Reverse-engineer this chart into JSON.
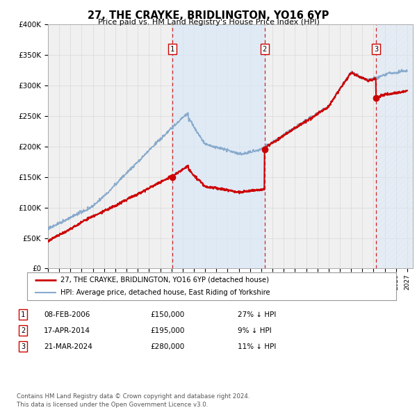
{
  "title": "27, THE CRAYKE, BRIDLINGTON, YO16 6YP",
  "subtitle": "Price paid vs. HM Land Registry's House Price Index (HPI)",
  "ylim": [
    0,
    400000
  ],
  "yticks": [
    0,
    50000,
    100000,
    150000,
    200000,
    250000,
    300000,
    350000,
    400000
  ],
  "xlim_start": 1995.0,
  "xlim_end": 2027.5,
  "sale_dates": [
    2006.1,
    2014.29,
    2024.22
  ],
  "sale_prices": [
    150000,
    195000,
    280000
  ],
  "sale_labels": [
    "1",
    "2",
    "3"
  ],
  "sale_info": [
    {
      "label": "1",
      "date": "08-FEB-2006",
      "price": "£150,000",
      "pct": "27% ↓ HPI"
    },
    {
      "label": "2",
      "date": "17-APR-2014",
      "price": "£195,000",
      "pct": "9% ↓ HPI"
    },
    {
      "label": "3",
      "date": "21-MAR-2024",
      "price": "£280,000",
      "pct": "11% ↓ HPI"
    }
  ],
  "legend_entries": [
    {
      "label": "27, THE CRAYKE, BRIDLINGTON, YO16 6YP (detached house)",
      "color": "#cc0000",
      "lw": 1.5
    },
    {
      "label": "HPI: Average price, detached house, East Riding of Yorkshire",
      "color": "#88aacc",
      "lw": 1.2
    }
  ],
  "footnote": "Contains HM Land Registry data © Crown copyright and database right 2024.\nThis data is licensed under the Open Government Licence v3.0.",
  "background_color": "#ffffff",
  "plot_bg_color": "#f0f0f0",
  "grid_color": "#d8d8d8",
  "sale_marker_color": "#cc0000",
  "shaded_color": "#d8e8f8",
  "hatch_color": "#d8e8f8"
}
